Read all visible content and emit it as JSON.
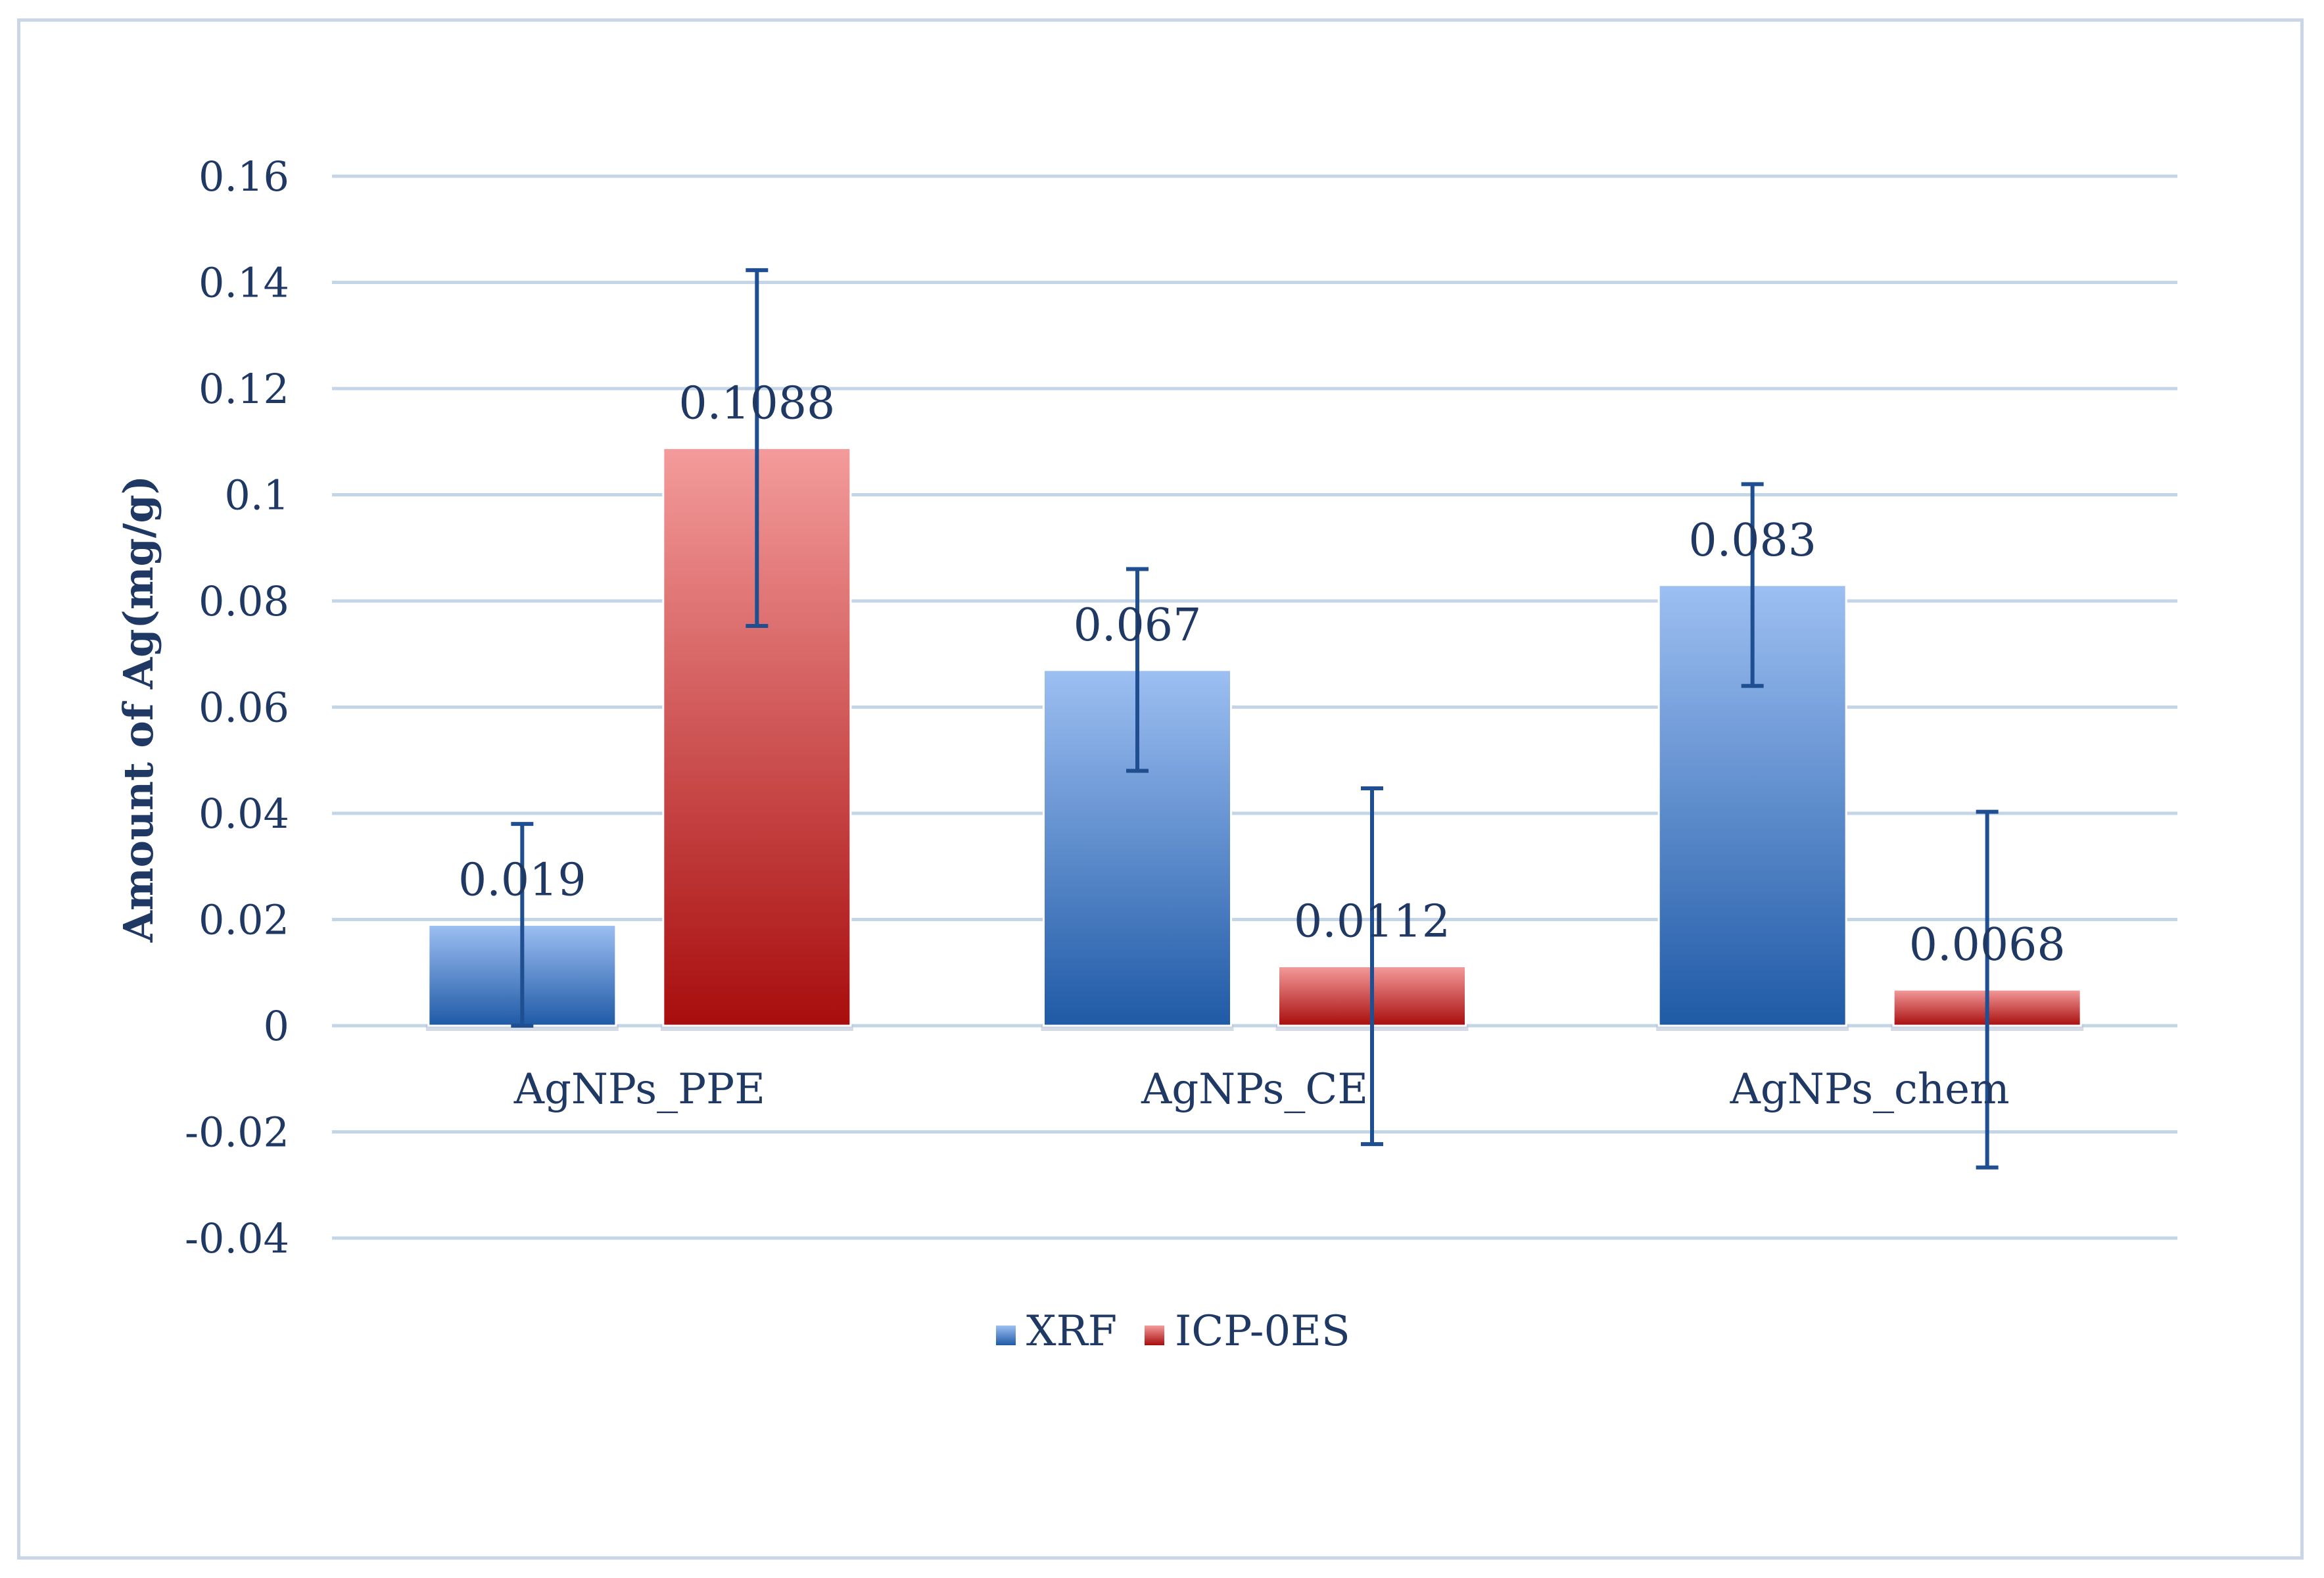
{
  "chart_data": {
    "type": "bar",
    "title": "",
    "xlabel": "",
    "ylabel": "Amount of Ag(mg/g)",
    "categories": [
      "AgNPs_PPE",
      "AgNPs_CE",
      "AgNPs_chem"
    ],
    "series": [
      {
        "name": "XRF",
        "values": [
          0.019,
          0.067,
          0.083
        ],
        "labels": [
          "0.019",
          "0.067",
          "0.083"
        ],
        "error": [
          0.019,
          0.019,
          0.019
        ],
        "color_top": "#9dbff2",
        "color_bottom": "#1f5aa6"
      },
      {
        "name": "ICP-0ES",
        "values": [
          0.1088,
          0.0112,
          0.0068
        ],
        "labels": [
          "0.1088",
          "0.0112",
          "0.0068"
        ],
        "error": [
          0.0335,
          0.0335,
          0.0335
        ],
        "color_top": "#f49b9b",
        "color_bottom": "#a80d0d"
      }
    ],
    "ylim": [
      -0.04,
      0.16
    ],
    "yticks": [
      -0.04,
      -0.02,
      0,
      0.02,
      0.04,
      0.06,
      0.08,
      0.1,
      0.12,
      0.14,
      0.16
    ],
    "ytick_labels": [
      "-0.04",
      "-0.02",
      "0",
      "0.02",
      "0.04",
      "0.06",
      "0.08",
      "0.1",
      "0.12",
      "0.14",
      "0.16"
    ],
    "grid": true,
    "legend_position": "bottom",
    "gridline_color": "#c5d5e8",
    "error_bar_color": "#1f4e91",
    "text_color": "#1f3864"
  }
}
